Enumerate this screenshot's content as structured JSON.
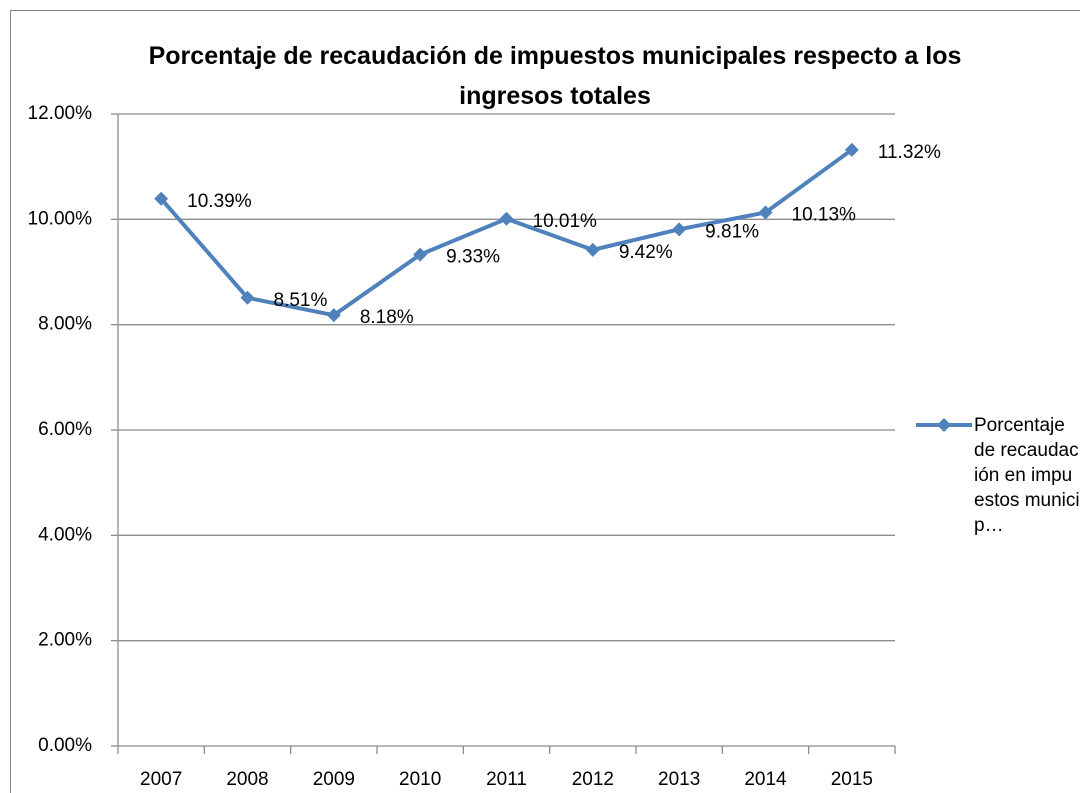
{
  "chart_data": {
    "type": "line",
    "title": "Porcentaje de recaudación de impuestos municipales respecto a los ingresos totales",
    "categories": [
      "2007",
      "2008",
      "2009",
      "2010",
      "2011",
      "2012",
      "2013",
      "2014",
      "2015"
    ],
    "series": [
      {
        "name": "Porcentaje de recaudación en impuestos municip…",
        "color": "#4f81bd",
        "values": [
          10.39,
          8.51,
          8.18,
          9.33,
          10.01,
          9.42,
          9.81,
          10.13,
          11.32
        ],
        "value_labels": [
          "10.39%",
          "8.51%",
          "8.18%",
          "9.33%",
          "10.01%",
          "9.42%",
          "9.81%",
          "10.13%",
          "11.32%"
        ]
      }
    ],
    "ylim": [
      0,
      12
    ],
    "yticks": [
      {
        "value": 0,
        "label": "0.00%"
      },
      {
        "value": 2,
        "label": "2.00%"
      },
      {
        "value": 4,
        "label": "4.00%"
      },
      {
        "value": 6,
        "label": "6.00%"
      },
      {
        "value": 8,
        "label": "8.00%"
      },
      {
        "value": 10,
        "label": "10.00%"
      },
      {
        "value": 12,
        "label": "12.00%"
      }
    ],
    "grid": true,
    "legend": "right"
  }
}
